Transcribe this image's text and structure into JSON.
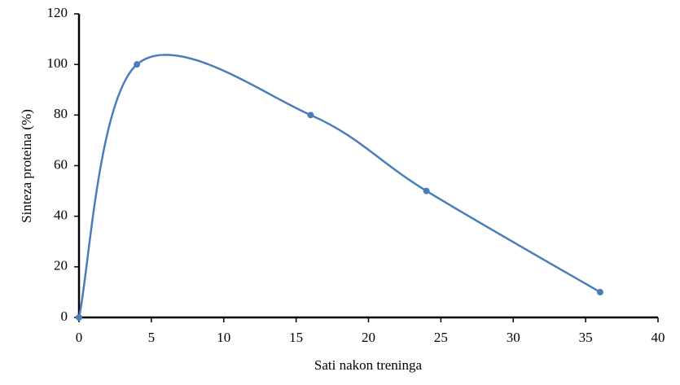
{
  "chart_data": {
    "type": "line",
    "smooth": true,
    "color": "#4a7ebb",
    "x": [
      0,
      4,
      16,
      24,
      36
    ],
    "values": [
      0,
      100,
      80,
      50,
      10
    ],
    "xlabel": "Sati nakon treninga",
    "ylabel": "Sinteza proteina (%)",
    "xlim": [
      0,
      40
    ],
    "xticks": [
      0,
      5,
      10,
      15,
      20,
      25,
      30,
      35,
      40
    ],
    "ylim": [
      0,
      120
    ],
    "yticks": [
      0,
      20,
      40,
      60,
      80,
      100,
      120
    ],
    "grid": false
  }
}
